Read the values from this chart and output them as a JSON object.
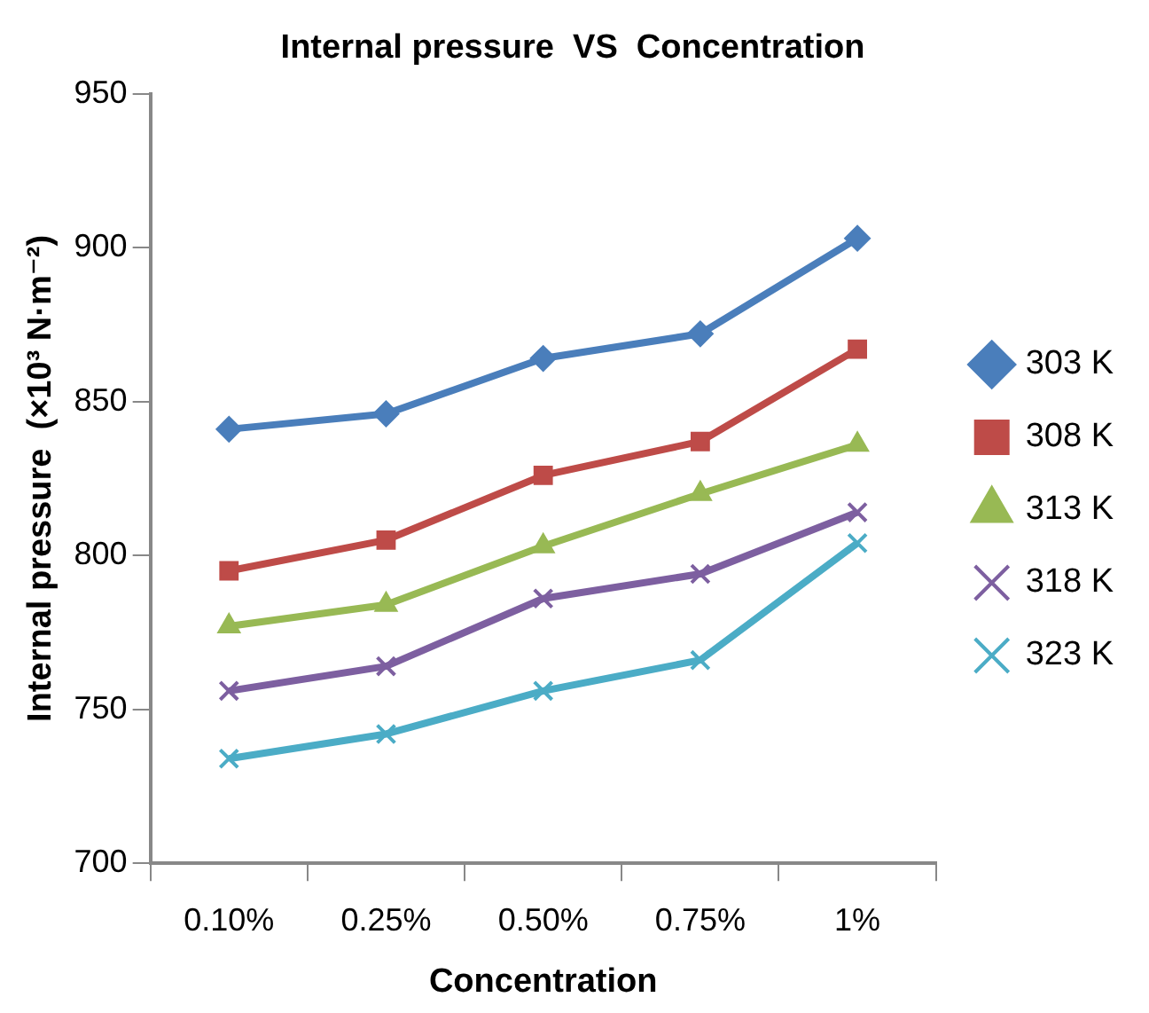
{
  "chart_data": {
    "type": "line",
    "title": "Internal pressure  VS  Concentration",
    "xlabel": "Concentration",
    "ylabel": "Internal pressure  (×10³ N·m⁻²)",
    "categories": [
      "0.10%",
      "0.25%",
      "0.50%",
      "0.75%",
      "1%"
    ],
    "series": [
      {
        "name": "303 K",
        "color": "#4a7ebb",
        "marker": "diamond",
        "values": [
          841,
          846,
          864,
          872,
          903
        ]
      },
      {
        "name": "308 K",
        "color": "#be4b48",
        "marker": "square",
        "values": [
          795,
          805,
          826,
          837,
          867
        ]
      },
      {
        "name": "313 K",
        "color": "#98b954",
        "marker": "triangle",
        "values": [
          777,
          784,
          803,
          820,
          836
        ]
      },
      {
        "name": "318 K",
        "color": "#7d5fa0",
        "marker": "cross",
        "values": [
          756,
          764,
          786,
          794,
          814
        ]
      },
      {
        "name": "323 K",
        "color": "#4bacc6",
        "marker": "cross",
        "values": [
          734,
          742,
          756,
          766,
          804
        ]
      }
    ],
    "ylim": [
      700,
      950
    ],
    "yticks": [
      700,
      750,
      800,
      850,
      900,
      950
    ],
    "grid": false,
    "legend": "right",
    "line_style": "solid"
  }
}
